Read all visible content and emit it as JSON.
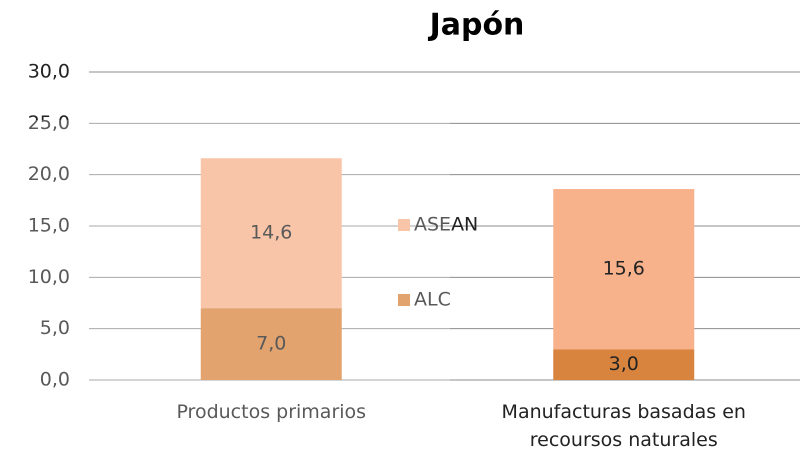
{
  "chart_data": {
    "type": "stacked-bar",
    "title": "Japón",
    "categories": [
      "Productos primarios",
      "Manufacturas basadas en recoursos naturales"
    ],
    "series": [
      {
        "name": "ALC",
        "color": "#d9843e",
        "values": [
          7.0,
          3.0
        ],
        "value_labels": [
          "7,0",
          "3,0"
        ]
      },
      {
        "name": "ASEAN",
        "color": "#f7b28b",
        "values": [
          14.6,
          15.6
        ],
        "value_labels": [
          "14,6",
          "15,6"
        ]
      }
    ],
    "ylim": [
      0,
      30
    ],
    "yticks": [
      {
        "value": 0,
        "label": "0,0"
      },
      {
        "value": 5,
        "label": "5,0"
      },
      {
        "value": 10,
        "label": "10,0"
      },
      {
        "value": 15,
        "label": "15,0"
      },
      {
        "value": 20,
        "label": "20,0"
      },
      {
        "value": 25,
        "label": "25,0"
      },
      {
        "value": 30,
        "label": "30,0"
      }
    ],
    "grid": true,
    "legend": "center"
  }
}
